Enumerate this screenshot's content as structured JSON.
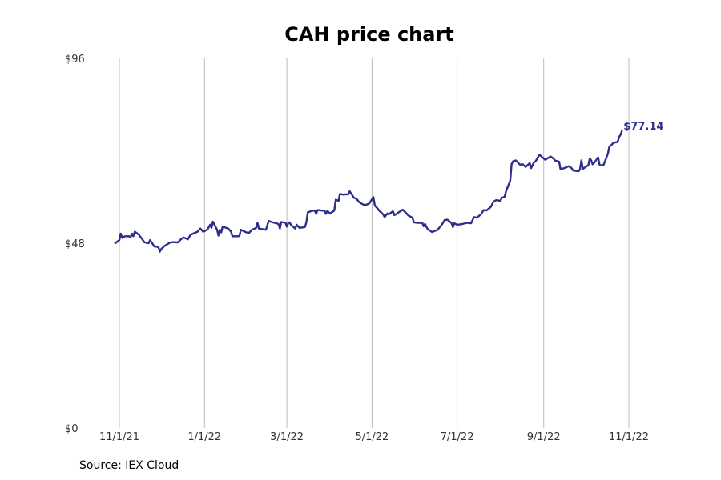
{
  "chart_data": {
    "type": "line",
    "title": "CAH price chart",
    "xlabel": "",
    "ylabel": "",
    "x_start": "2021-10-29",
    "x_end": "2022-10-28",
    "x_ticks": [
      "2021-11-01",
      "2022-01-01",
      "2022-03-01",
      "2022-05-01",
      "2022-07-01",
      "2022-09-01",
      "2022-11-01"
    ],
    "x_tick_labels": [
      "11/1/21",
      "1/1/22",
      "3/1/22",
      "5/1/22",
      "7/1/22",
      "9/1/22",
      "11/1/22"
    ],
    "ylim": [
      0,
      96
    ],
    "y_ticks": [
      0,
      48,
      96
    ],
    "y_tick_labels": [
      "$0",
      "$48",
      "$96"
    ],
    "grid": "vertical",
    "line_color": "#2e2d8c",
    "series": [
      {
        "values": [
          [
            "2021-10-29",
            48.0
          ],
          [
            "2021-11-01",
            48.8
          ],
          [
            "2021-11-02",
            50.5
          ],
          [
            "2021-11-03",
            49.4
          ],
          [
            "2021-11-05",
            49.8
          ],
          [
            "2021-11-08",
            49.8
          ],
          [
            "2021-11-09",
            49.5
          ],
          [
            "2021-11-10",
            50.5
          ],
          [
            "2021-11-11",
            49.8
          ],
          [
            "2021-11-12",
            51.0
          ],
          [
            "2021-11-15",
            50.2
          ],
          [
            "2021-11-17",
            49.2
          ],
          [
            "2021-11-19",
            48.2
          ],
          [
            "2021-11-22",
            48.0
          ],
          [
            "2021-11-23",
            48.8
          ],
          [
            "2021-11-26",
            47.2
          ],
          [
            "2021-11-29",
            47.0
          ],
          [
            "2021-11-30",
            45.8
          ],
          [
            "2021-12-01",
            46.5
          ],
          [
            "2021-12-03",
            47.2
          ],
          [
            "2021-12-07",
            48.1
          ],
          [
            "2021-12-09",
            48.3
          ],
          [
            "2021-12-13",
            48.2
          ],
          [
            "2021-12-15",
            49.0
          ],
          [
            "2021-12-17",
            49.5
          ],
          [
            "2021-12-20",
            49.0
          ],
          [
            "2021-12-22",
            50.2
          ],
          [
            "2021-12-27",
            51.0
          ],
          [
            "2021-12-29",
            51.8
          ],
          [
            "2021-12-31",
            51.0
          ],
          [
            "2022-01-03",
            51.5
          ],
          [
            "2022-01-05",
            52.8
          ],
          [
            "2022-01-06",
            52.0
          ],
          [
            "2022-01-07",
            53.6
          ],
          [
            "2022-01-10",
            51.5
          ],
          [
            "2022-01-11",
            50.0
          ],
          [
            "2022-01-12",
            51.5
          ],
          [
            "2022-01-13",
            50.8
          ],
          [
            "2022-01-14",
            52.3
          ],
          [
            "2022-01-18",
            51.8
          ],
          [
            "2022-01-20",
            51.0
          ],
          [
            "2022-01-21",
            49.8
          ],
          [
            "2022-01-25",
            49.8
          ],
          [
            "2022-01-26",
            49.9
          ],
          [
            "2022-01-27",
            51.5
          ],
          [
            "2022-01-31",
            50.8
          ],
          [
            "2022-02-02",
            50.7
          ],
          [
            "2022-02-04",
            51.5
          ],
          [
            "2022-02-07",
            52.0
          ],
          [
            "2022-02-08",
            53.3
          ],
          [
            "2022-02-09",
            51.8
          ],
          [
            "2022-02-14",
            51.5
          ],
          [
            "2022-02-16",
            53.8
          ],
          [
            "2022-02-18",
            53.5
          ],
          [
            "2022-02-23",
            53.0
          ],
          [
            "2022-02-24",
            51.8
          ],
          [
            "2022-02-25",
            53.5
          ],
          [
            "2022-02-28",
            53.3
          ],
          [
            "2022-03-01",
            52.3
          ],
          [
            "2022-03-02",
            53.2
          ],
          [
            "2022-03-03",
            53.4
          ],
          [
            "2022-03-04",
            52.7
          ],
          [
            "2022-03-07",
            51.8
          ],
          [
            "2022-03-08",
            52.8
          ],
          [
            "2022-03-10",
            52.0
          ],
          [
            "2022-03-14",
            52.2
          ],
          [
            "2022-03-15",
            53.5
          ],
          [
            "2022-03-16",
            56.0
          ],
          [
            "2022-03-18",
            56.3
          ],
          [
            "2022-03-21",
            56.5
          ],
          [
            "2022-03-22",
            55.6
          ],
          [
            "2022-03-23",
            56.6
          ],
          [
            "2022-03-28",
            56.4
          ],
          [
            "2022-03-29",
            55.6
          ],
          [
            "2022-03-30",
            56.4
          ],
          [
            "2022-04-01",
            55.7
          ],
          [
            "2022-04-04",
            56.5
          ],
          [
            "2022-04-05",
            59.3
          ],
          [
            "2022-04-07",
            59.0
          ],
          [
            "2022-04-08",
            60.8
          ],
          [
            "2022-04-11",
            60.6
          ],
          [
            "2022-04-12",
            60.7
          ],
          [
            "2022-04-14",
            60.7
          ],
          [
            "2022-04-15",
            61.5
          ],
          [
            "2022-04-18",
            59.8
          ],
          [
            "2022-04-20",
            59.5
          ],
          [
            "2022-04-22",
            58.6
          ],
          [
            "2022-04-25",
            58.0
          ],
          [
            "2022-04-27",
            58.0
          ],
          [
            "2022-04-29",
            58.3
          ],
          [
            "2022-05-02",
            60.0
          ],
          [
            "2022-05-03",
            57.8
          ],
          [
            "2022-05-05",
            57.0
          ],
          [
            "2022-05-06",
            56.5
          ],
          [
            "2022-05-09",
            55.5
          ],
          [
            "2022-05-10",
            54.8
          ],
          [
            "2022-05-12",
            55.7
          ],
          [
            "2022-05-13",
            55.5
          ],
          [
            "2022-05-16",
            56.3
          ],
          [
            "2022-05-17",
            55.3
          ],
          [
            "2022-05-19",
            55.7
          ],
          [
            "2022-05-20",
            56.0
          ],
          [
            "2022-05-23",
            56.7
          ],
          [
            "2022-05-25",
            56.0
          ],
          [
            "2022-05-27",
            55.2
          ],
          [
            "2022-05-30",
            54.6
          ],
          [
            "2022-05-31",
            53.4
          ],
          [
            "2022-06-02",
            53.3
          ],
          [
            "2022-06-06",
            53.3
          ],
          [
            "2022-06-07",
            52.4
          ],
          [
            "2022-06-08",
            53.0
          ],
          [
            "2022-06-09",
            52.2
          ],
          [
            "2022-06-10",
            51.6
          ],
          [
            "2022-06-13",
            50.9
          ],
          [
            "2022-06-15",
            51.2
          ],
          [
            "2022-06-17",
            51.5
          ],
          [
            "2022-06-20",
            52.8
          ],
          [
            "2022-06-22",
            54.0
          ],
          [
            "2022-06-24",
            54.1
          ],
          [
            "2022-06-27",
            53.2
          ],
          [
            "2022-06-28",
            52.2
          ],
          [
            "2022-06-29",
            53.2
          ],
          [
            "2022-07-01",
            52.8
          ],
          [
            "2022-07-05",
            53.0
          ],
          [
            "2022-07-08",
            53.3
          ],
          [
            "2022-07-11",
            53.2
          ],
          [
            "2022-07-13",
            54.8
          ],
          [
            "2022-07-15",
            54.6
          ],
          [
            "2022-07-18",
            55.5
          ],
          [
            "2022-07-20",
            56.6
          ],
          [
            "2022-07-22",
            56.5
          ],
          [
            "2022-07-25",
            57.4
          ],
          [
            "2022-07-27",
            58.8
          ],
          [
            "2022-07-29",
            59.2
          ],
          [
            "2022-08-01",
            59.0
          ],
          [
            "2022-08-02",
            59.8
          ],
          [
            "2022-08-03",
            59.9
          ],
          [
            "2022-08-04",
            60.1
          ],
          [
            "2022-08-05",
            61.5
          ],
          [
            "2022-08-08",
            64.2
          ],
          [
            "2022-08-09",
            68.5
          ],
          [
            "2022-08-10",
            69.3
          ],
          [
            "2022-08-12",
            69.5
          ],
          [
            "2022-08-15",
            68.4
          ],
          [
            "2022-08-17",
            68.5
          ],
          [
            "2022-08-19",
            67.8
          ],
          [
            "2022-08-22",
            68.8
          ],
          [
            "2022-08-23",
            67.5
          ],
          [
            "2022-08-25",
            69.0
          ],
          [
            "2022-08-26",
            69.2
          ],
          [
            "2022-08-29",
            71.0
          ],
          [
            "2022-08-31",
            70.3
          ],
          [
            "2022-09-02",
            69.7
          ],
          [
            "2022-09-06",
            70.5
          ],
          [
            "2022-09-08",
            70.0
          ],
          [
            "2022-09-09",
            69.5
          ],
          [
            "2022-09-12",
            69.2
          ],
          [
            "2022-09-13",
            67.3
          ],
          [
            "2022-09-15",
            67.4
          ],
          [
            "2022-09-19",
            68.0
          ],
          [
            "2022-09-21",
            67.5
          ],
          [
            "2022-09-22",
            66.9
          ],
          [
            "2022-09-26",
            66.7
          ],
          [
            "2022-09-27",
            67.2
          ],
          [
            "2022-09-28",
            69.5
          ],
          [
            "2022-09-29",
            67.3
          ],
          [
            "2022-10-03",
            68.3
          ],
          [
            "2022-10-04",
            70.0
          ],
          [
            "2022-10-05",
            69.5
          ],
          [
            "2022-10-06",
            68.5
          ],
          [
            "2022-10-07",
            68.8
          ],
          [
            "2022-10-10",
            70.3
          ],
          [
            "2022-10-11",
            68.4
          ],
          [
            "2022-10-12",
            68.2
          ],
          [
            "2022-10-14",
            68.4
          ],
          [
            "2022-10-17",
            71.3
          ],
          [
            "2022-10-18",
            73.1
          ],
          [
            "2022-10-19",
            73.3
          ],
          [
            "2022-10-21",
            74.1
          ],
          [
            "2022-10-24",
            74.3
          ],
          [
            "2022-10-25",
            75.6
          ],
          [
            "2022-10-26",
            76.1
          ],
          [
            "2022-10-27",
            77.14
          ]
        ]
      }
    ],
    "last_value_label": "$77.14"
  },
  "source": "Source: IEX Cloud"
}
